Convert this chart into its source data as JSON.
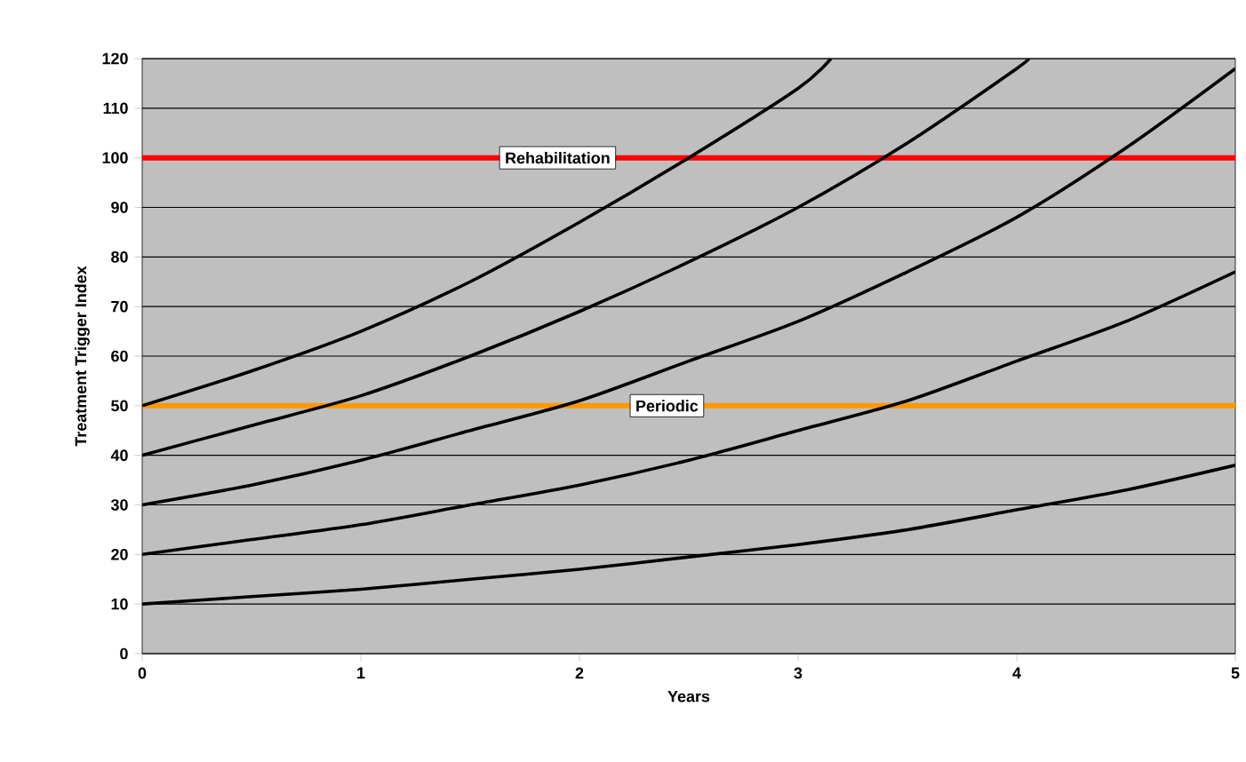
{
  "chart_data": {
    "type": "line",
    "xlabel": "Years",
    "ylabel": "Treatment Trigger Index",
    "xlim": [
      0,
      5
    ],
    "ylim": [
      0,
      120
    ],
    "xticks": [
      0,
      1,
      2,
      3,
      4,
      5
    ],
    "yticks": [
      0,
      10,
      20,
      30,
      40,
      50,
      60,
      70,
      80,
      90,
      100,
      110,
      120
    ],
    "grid": "y",
    "line_style": "solid",
    "marker": "none",
    "series": [
      {
        "color": "#000000",
        "x": [
          0,
          0.5,
          1,
          1.5,
          2,
          2.5,
          3,
          3.5,
          4,
          4.5,
          5
        ],
        "values": [
          10,
          11.5,
          13,
          15,
          17,
          19.5,
          22,
          25,
          29,
          33,
          38
        ]
      },
      {
        "color": "#000000",
        "x": [
          0,
          0.5,
          1,
          1.5,
          2,
          2.5,
          3,
          3.5,
          4,
          4.5,
          5
        ],
        "values": [
          20,
          23,
          26,
          30,
          34,
          39,
          45,
          51,
          59,
          67,
          77
        ]
      },
      {
        "color": "#000000",
        "x": [
          0,
          0.5,
          1,
          1.5,
          2,
          2.5,
          3,
          3.5,
          4,
          4.5,
          5
        ],
        "values": [
          30,
          34,
          39,
          45,
          51,
          59,
          67,
          77,
          88,
          102,
          118
        ]
      },
      {
        "color": "#000000",
        "x": [
          0,
          0.5,
          1,
          1.5,
          2,
          2.5,
          3,
          3.5,
          4,
          4.05
        ],
        "values": [
          40,
          46,
          52,
          60,
          69,
          79,
          90,
          103,
          118,
          120
        ]
      },
      {
        "color": "#000000",
        "x": [
          0,
          0.5,
          1,
          1.5,
          2,
          2.5,
          3,
          3.15
        ],
        "values": [
          50,
          57,
          65,
          75,
          87,
          100,
          114,
          120
        ]
      }
    ],
    "ref_lines": [
      {
        "axis": "y",
        "value": 100,
        "label": "Rehabilitation",
        "color": "#ff0000"
      },
      {
        "axis": "y",
        "value": 50,
        "label": "Periodic",
        "color": "#ff9900"
      }
    ]
  }
}
